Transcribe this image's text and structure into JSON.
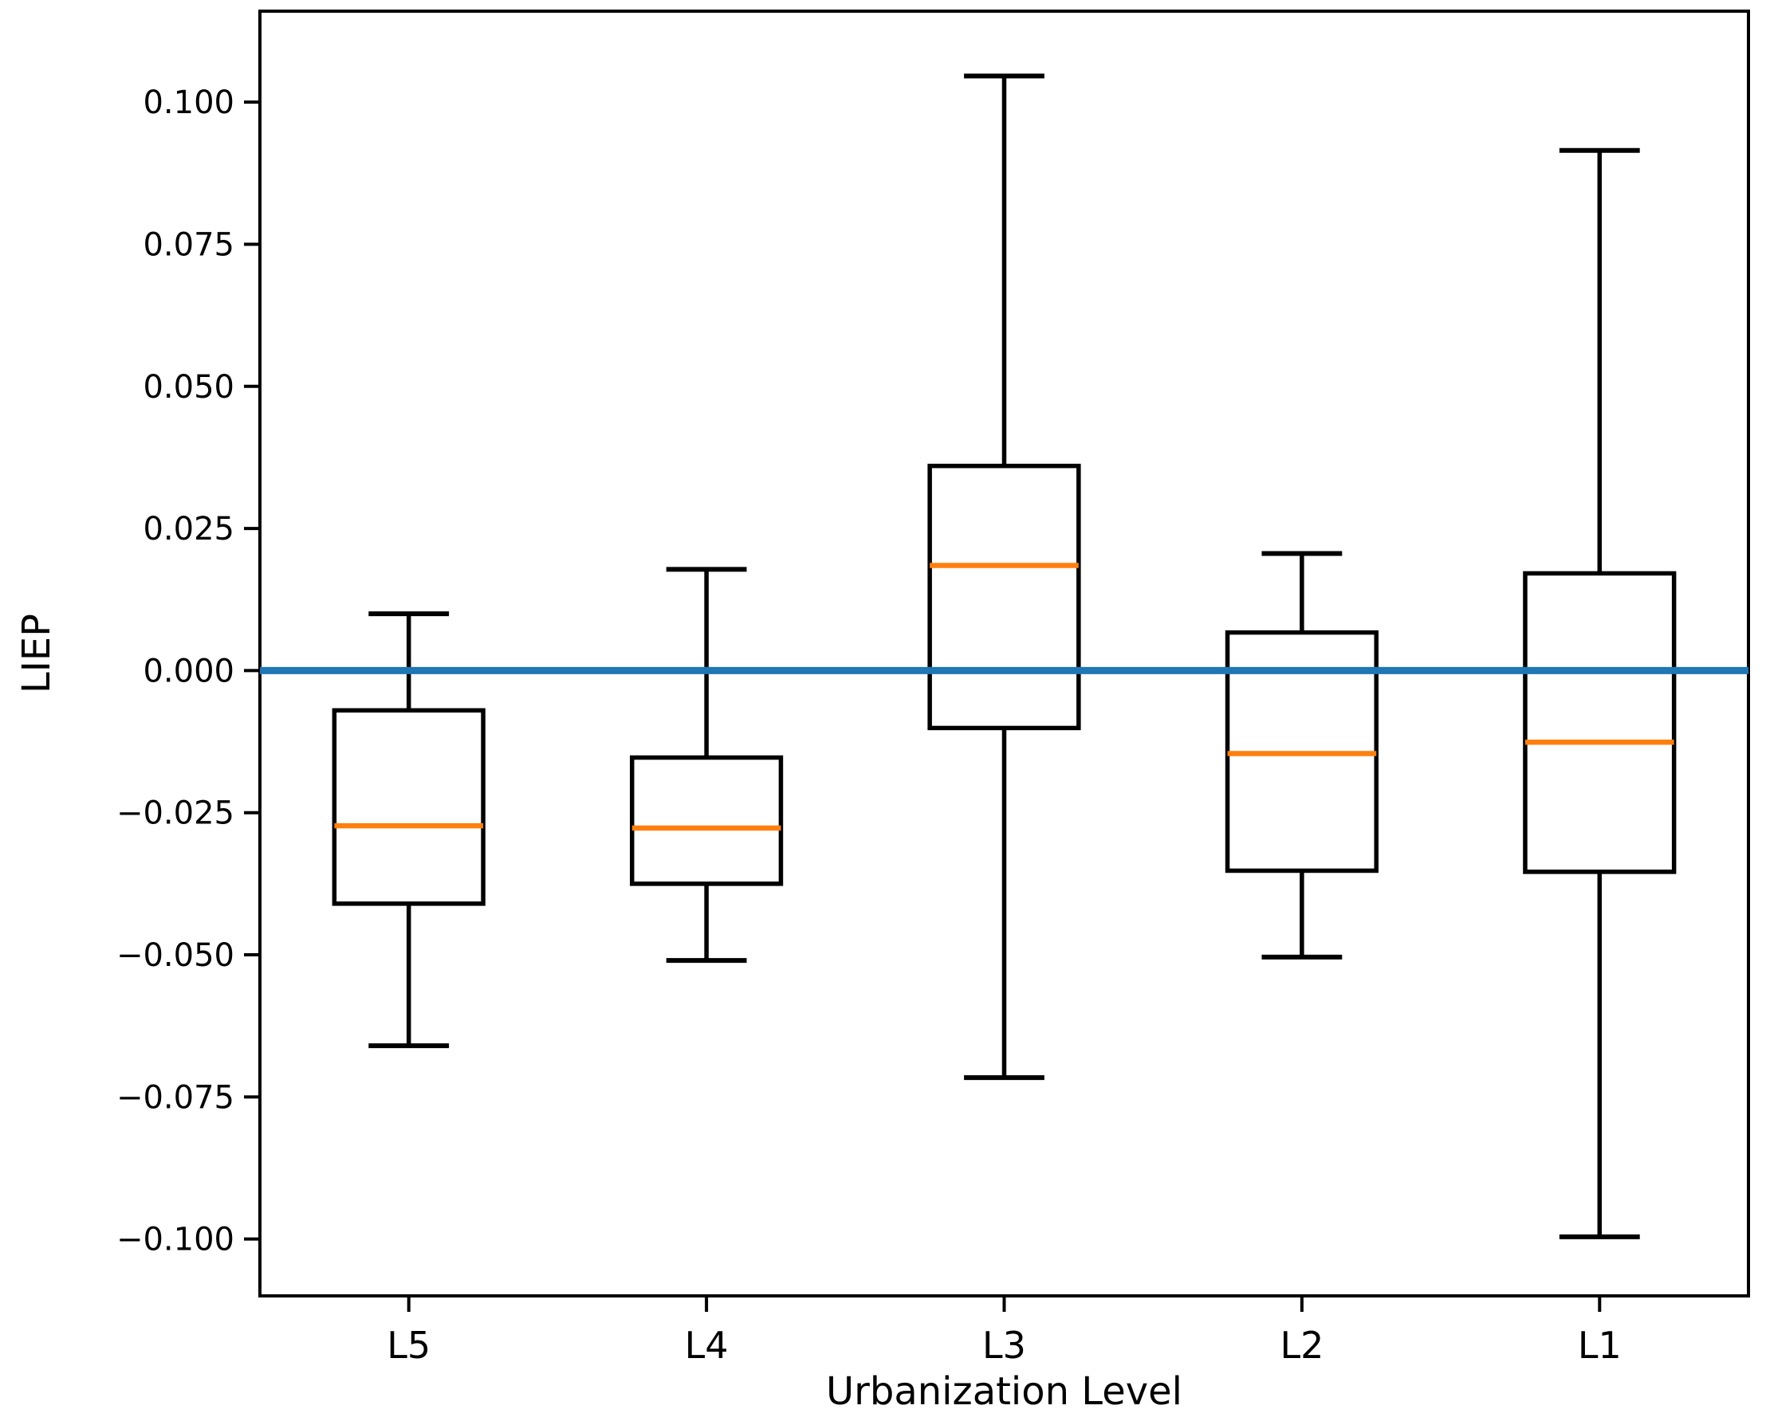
{
  "page": {
    "background": "#ffffff"
  },
  "chart_data": {
    "type": "box",
    "title": "",
    "xlabel": "Urbanization Level",
    "ylabel": "LIEP",
    "categories": [
      "L5",
      "L4",
      "L3",
      "L2",
      "L1"
    ],
    "boxes": [
      {
        "label": "L5",
        "whisker_low": -0.066,
        "q1": -0.041,
        "median": -0.0273,
        "q3": -0.007,
        "whisker_high": 0.01
      },
      {
        "label": "L4",
        "whisker_low": -0.051,
        "q1": -0.0375,
        "median": -0.0277,
        "q3": -0.0153,
        "whisker_high": 0.0178
      },
      {
        "label": "L3",
        "whisker_low": -0.0716,
        "q1": -0.0101,
        "median": 0.0185,
        "q3": 0.036,
        "whisker_high": 0.1046
      },
      {
        "label": "L2",
        "whisker_low": -0.0504,
        "q1": -0.0352,
        "median": -0.0146,
        "q3": 0.0067,
        "whisker_high": 0.0206
      },
      {
        "label": "L1",
        "whisker_low": -0.0996,
        "q1": -0.0354,
        "median": -0.0126,
        "q3": 0.0171,
        "whisker_high": 0.0915
      }
    ],
    "y_ticks": [
      0.1,
      0.075,
      0.05,
      0.025,
      0.0,
      -0.025,
      -0.05,
      -0.075,
      -0.1
    ],
    "y_tick_labels": [
      "0.100",
      "0.075",
      "0.050",
      "0.025",
      "0.000",
      "−0.025",
      "−0.050",
      "−0.075",
      "−0.100"
    ],
    "ylim": [
      -0.11,
      0.116
    ],
    "reference_line": {
      "y": 0.0,
      "color": "#1f77b4"
    },
    "colors": {
      "box_stroke": "#000000",
      "median": "#ff7f0e",
      "reference": "#1f77b4",
      "axis": "#000000"
    },
    "grid": false,
    "legend": false
  }
}
